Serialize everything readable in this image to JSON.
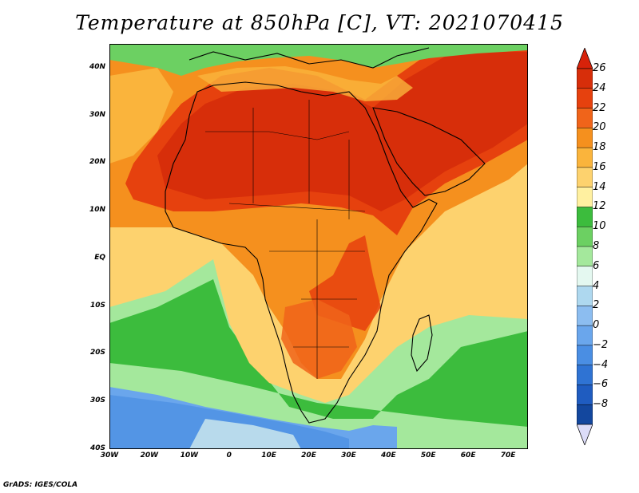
{
  "title": "Temperature at 850hPa [C], VT: 2021070415",
  "credit": "GrADS: IGES/COLA",
  "map": {
    "lon_range": [
      -30,
      75
    ],
    "lat_range": [
      -40,
      45
    ],
    "lat_ticks": [
      {
        "value": 40,
        "label": "40N"
      },
      {
        "value": 30,
        "label": "30N"
      },
      {
        "value": 20,
        "label": "20N"
      },
      {
        "value": 10,
        "label": "10N"
      },
      {
        "value": 0,
        "label": "EQ"
      },
      {
        "value": -10,
        "label": "10S"
      },
      {
        "value": -20,
        "label": "20S"
      },
      {
        "value": -30,
        "label": "30S"
      },
      {
        "value": -40,
        "label": "40S"
      }
    ],
    "lon_ticks": [
      {
        "value": -30,
        "label": "30W"
      },
      {
        "value": -20,
        "label": "20W"
      },
      {
        "value": -10,
        "label": "10W"
      },
      {
        "value": 0,
        "label": "0"
      },
      {
        "value": 10,
        "label": "10E"
      },
      {
        "value": 20,
        "label": "20E"
      },
      {
        "value": 30,
        "label": "30E"
      },
      {
        "value": 40,
        "label": "40E"
      },
      {
        "value": 50,
        "label": "50E"
      },
      {
        "value": 60,
        "label": "60E"
      },
      {
        "value": 70,
        "label": "70E"
      }
    ]
  },
  "colorbar": {
    "labels": [
      "26",
      "24",
      "22",
      "20",
      "18",
      "16",
      "14",
      "12",
      "10",
      "8",
      "6",
      "4",
      "2",
      "0",
      "−2",
      "−4",
      "−6",
      "−8"
    ],
    "levels": [
      26,
      24,
      22,
      20,
      18,
      16,
      14,
      12,
      10,
      8,
      6,
      4,
      2,
      0,
      -2,
      -4,
      -6,
      -8
    ],
    "colors": [
      "#d72e0a",
      "#e6410e",
      "#f0641a",
      "#f5901e",
      "#fab43c",
      "#fdd26e",
      "#fff0a0",
      "#3cbc3d",
      "#6cd062",
      "#a4e89c",
      "#e4f8f0",
      "#aed8ef",
      "#8cbdf0",
      "#6aa6ec",
      "#4a8ee3",
      "#2f73d3",
      "#1f5cc0",
      "#13479e"
    ],
    "top_color": "#d7220a",
    "bottom_color": "#dcdcf8"
  }
}
